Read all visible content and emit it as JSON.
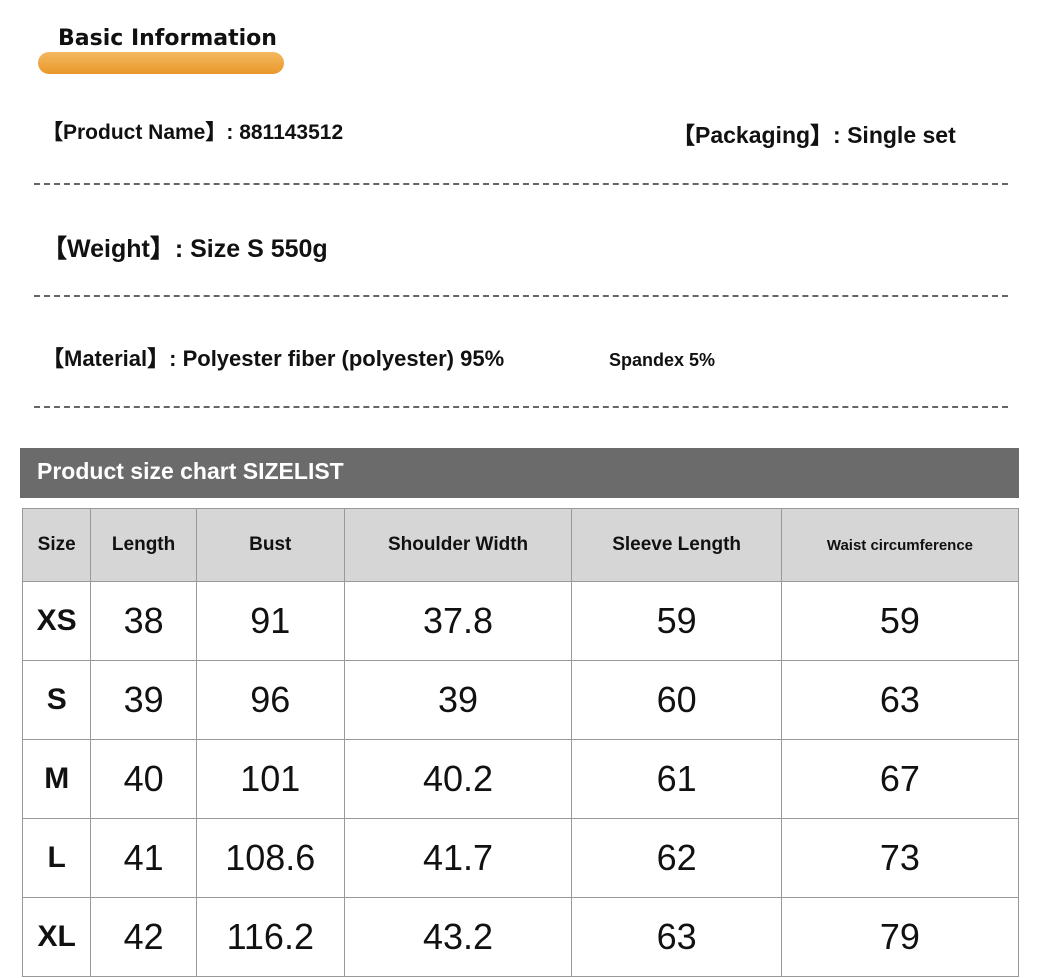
{
  "header": {
    "title": "Basic Information"
  },
  "info": {
    "product_name": "【Product Name】: 881143512",
    "packaging": "【Packaging】: Single set",
    "weight": "【Weight】: Size S 550g",
    "material": "【Material】: Polyester fiber (polyester) 95%",
    "material_extra": "Spandex 5%"
  },
  "size_chart": {
    "title": "Product size chart SIZELIST",
    "columns": [
      "Size",
      "Length",
      "Bust",
      "Shoulder Width",
      "Sleeve Length",
      "Waist circumference"
    ],
    "rows": [
      [
        "XS",
        "38",
        "91",
        "37.8",
        "59",
        "59"
      ],
      [
        "S",
        "39",
        "96",
        "39",
        "60",
        "63"
      ],
      [
        "M",
        "40",
        "101",
        "40.2",
        "61",
        "67"
      ],
      [
        "L",
        "41",
        "108.6",
        "41.7",
        "62",
        "73"
      ],
      [
        "XL",
        "42",
        "116.2",
        "43.2",
        "63",
        "79"
      ]
    ]
  }
}
